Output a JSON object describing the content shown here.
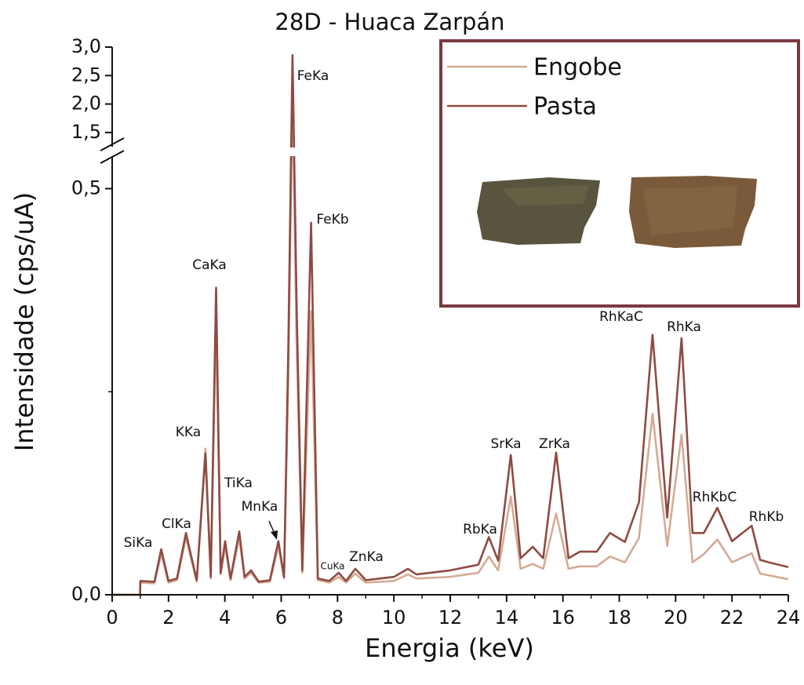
{
  "chart_data": {
    "type": "line",
    "title": "28D - Huaca Zarpán",
    "x_label": "Energia (keV)",
    "y_label": "Intensidade (cps/uA)",
    "xlim": [
      0,
      24
    ],
    "xticks": [
      0,
      2,
      4,
      6,
      8,
      10,
      12,
      14,
      16,
      18,
      20,
      22,
      24
    ],
    "minor_xticks": [
      1,
      3,
      5,
      7,
      9,
      11,
      13,
      15,
      17,
      19,
      21,
      23
    ],
    "ylim": [
      0,
      3.0
    ],
    "y_break": [
      0.54,
      1.25
    ],
    "yticks": [
      {
        "value": 0,
        "label": "0,0"
      },
      {
        "value": 0.5,
        "label": "0,5"
      },
      {
        "value": 1.5,
        "label": "1,5"
      },
      {
        "value": 2.0,
        "label": "2,0"
      },
      {
        "value": 2.5,
        "label": "2,5"
      },
      {
        "value": 3.0,
        "label": "3,0"
      }
    ],
    "minor_yticks": [
      0.25
    ],
    "legend": "upper right",
    "x": [
      0,
      0.99,
      1.0,
      1.5,
      1.74,
      2.0,
      2.3,
      2.62,
      3.0,
      3.31,
      3.5,
      3.69,
      3.85,
      4.01,
      4.2,
      4.51,
      4.7,
      4.93,
      5.2,
      5.6,
      5.9,
      6.1,
      6.25,
      6.4,
      6.55,
      6.75,
      7.06,
      7.3,
      7.7,
      8.04,
      8.3,
      8.63,
      9.0,
      10.0,
      10.5,
      10.8,
      12.0,
      13.0,
      13.37,
      13.7,
      14.15,
      14.5,
      14.93,
      15.3,
      15.76,
      16.2,
      16.6,
      17.2,
      17.67,
      18.2,
      18.7,
      19.18,
      19.7,
      20.21,
      20.6,
      21.0,
      21.48,
      22.0,
      22.7,
      23.0,
      23.3,
      24.0
    ],
    "series": [
      {
        "name": "Engobe",
        "color": "#d4ab94",
        "values": [
          0,
          0,
          0.015,
          0.014,
          0.05,
          0.015,
          0.018,
          0.07,
          0.016,
          0.18,
          0.02,
          0.337,
          0.025,
          0.06,
          0.018,
          0.07,
          0.02,
          0.027,
          0.015,
          0.016,
          0.06,
          0.02,
          0.26,
          2.24,
          0.3,
          0.027,
          0.349,
          0.018,
          0.015,
          0.022,
          0.015,
          0.026,
          0.015,
          0.017,
          0.025,
          0.02,
          0.022,
          0.027,
          0.047,
          0.03,
          0.121,
          0.032,
          0.038,
          0.032,
          0.1,
          0.032,
          0.035,
          0.035,
          0.047,
          0.04,
          0.07,
          0.223,
          0.06,
          0.197,
          0.04,
          0.05,
          0.068,
          0.04,
          0.051,
          0.026,
          0.024,
          0.019
        ]
      },
      {
        "name": "Pasta",
        "color": "#8e4b43",
        "values": [
          0,
          0,
          0.017,
          0.016,
          0.056,
          0.017,
          0.02,
          0.076,
          0.018,
          0.174,
          0.022,
          0.378,
          0.027,
          0.066,
          0.02,
          0.078,
          0.022,
          0.03,
          0.016,
          0.018,
          0.066,
          0.022,
          0.3,
          2.86,
          0.35,
          0.03,
          0.458,
          0.02,
          0.017,
          0.027,
          0.017,
          0.032,
          0.018,
          0.022,
          0.032,
          0.025,
          0.03,
          0.037,
          0.071,
          0.042,
          0.172,
          0.045,
          0.059,
          0.045,
          0.175,
          0.045,
          0.053,
          0.053,
          0.076,
          0.065,
          0.114,
          0.32,
          0.095,
          0.316,
          0.076,
          0.076,
          0.107,
          0.066,
          0.085,
          0.043,
          0.04,
          0.034
        ]
      }
    ],
    "annotations": [
      "SiKa",
      "ClKa",
      "KKa",
      "CaKa",
      "TiKa",
      "MnKa",
      "FeKa",
      "FeKb",
      "CuKa",
      "ZnKa",
      "RbKa",
      "SrKa",
      "ZrKa",
      "RhKaC",
      "RhKa",
      "RhKbC",
      "RhKb"
    ]
  }
}
